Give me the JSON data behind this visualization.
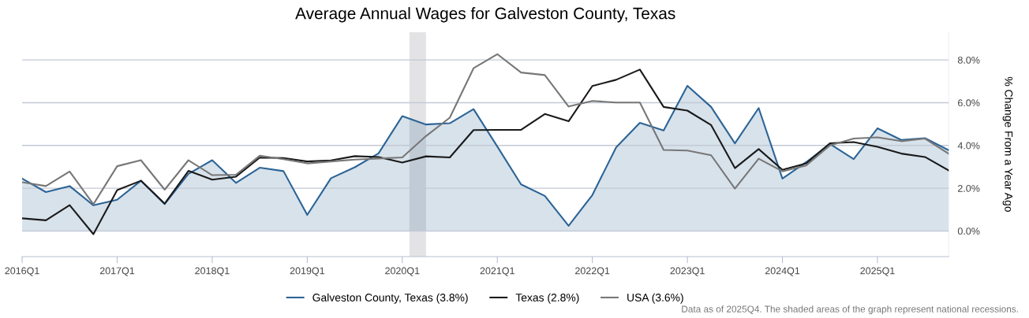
{
  "chart_data": {
    "type": "line",
    "title": "Average Annual Wages for Galveston County, Texas",
    "ylabel": "% Change From a Year Ago",
    "categories": [
      "2016Q1",
      null,
      null,
      null,
      "2017Q1",
      null,
      null,
      null,
      "2018Q1",
      null,
      null,
      null,
      "2019Q1",
      null,
      null,
      null,
      "2020Q1",
      null,
      null,
      null,
      "2021Q1",
      null,
      null,
      null,
      "2022Q1",
      null,
      null,
      null,
      "2023Q1",
      null,
      null,
      null,
      "2024Q1",
      null,
      null,
      null,
      "2025Q1",
      null,
      null,
      null
    ],
    "series": [
      {
        "name": "Galveston County, Texas (3.8%)",
        "type": "area",
        "color": "#2c6496",
        "values": [
          2.45,
          1.82,
          2.1,
          1.2,
          1.46,
          2.35,
          1.26,
          2.67,
          3.31,
          2.25,
          2.96,
          2.8,
          0.75,
          2.47,
          2.98,
          3.63,
          5.37,
          4.98,
          5.04,
          5.7,
          3.95,
          2.18,
          1.64,
          0.24,
          1.68,
          3.91,
          5.06,
          4.7,
          6.79,
          5.8,
          4.1,
          5.75,
          2.45,
          3.22,
          4.07,
          3.36,
          4.8,
          4.26,
          4.34,
          3.78
        ]
      },
      {
        "name": "Texas (2.8%)",
        "color": "#1a1a1a",
        "values": [
          0.59,
          0.5,
          1.21,
          -0.15,
          1.91,
          2.35,
          1.28,
          2.81,
          2.4,
          2.54,
          3.43,
          3.41,
          3.25,
          3.3,
          3.5,
          3.46,
          3.2,
          3.49,
          3.44,
          4.72,
          4.73,
          4.73,
          5.47,
          5.13,
          6.78,
          7.07,
          7.55,
          5.8,
          5.63,
          4.95,
          2.94,
          3.83,
          2.86,
          3.16,
          4.1,
          4.16,
          3.94,
          3.62,
          3.46,
          2.83
        ]
      },
      {
        "name": "USA (3.6%)",
        "color": "#777777",
        "values": [
          2.28,
          2.1,
          2.78,
          1.25,
          3.03,
          3.31,
          1.93,
          3.31,
          2.61,
          2.63,
          3.52,
          3.36,
          3.16,
          3.25,
          3.34,
          3.39,
          3.44,
          4.44,
          5.3,
          7.61,
          8.27,
          7.41,
          7.29,
          5.82,
          6.08,
          6.01,
          6.01,
          3.79,
          3.76,
          3.54,
          1.98,
          3.38,
          2.79,
          3.06,
          4.0,
          4.32,
          4.38,
          4.2,
          4.32,
          3.61
        ]
      }
    ],
    "ylim": [
      -1.2,
      9.3
    ],
    "yticks": [
      {
        "value": 0,
        "label": "0.0%"
      },
      {
        "value": 2,
        "label": "2.0%"
      },
      {
        "value": 4,
        "label": "4.0%"
      },
      {
        "value": 6,
        "label": "6.0%"
      },
      {
        "value": 8,
        "label": "8.0%"
      }
    ],
    "grid": "y",
    "legend": "bottom",
    "marker": "none",
    "annotations": [
      "Data as of 2025Q4. The shaded areas of the graph represent national recessions."
    ]
  }
}
